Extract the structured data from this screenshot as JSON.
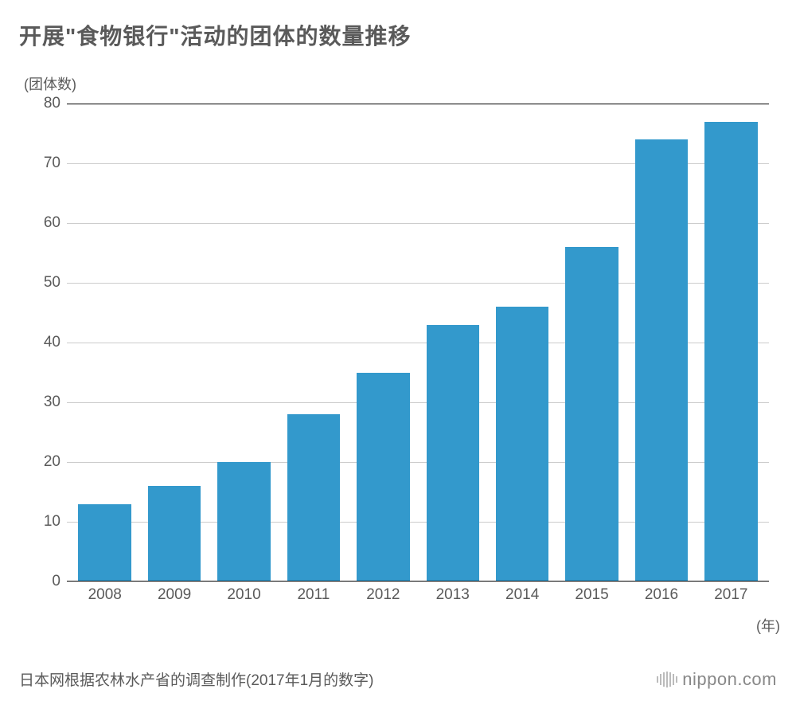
{
  "title": "开展\"食物银行\"活动的团体的数量推移",
  "ylabel": "(团体数)",
  "xlabel": "(年)",
  "source": "日本网根据农林水产省的调查制作(2017年1月的数字)",
  "logo": "nippon.com",
  "chart": {
    "type": "bar",
    "categories": [
      "2008",
      "2009",
      "2010",
      "2011",
      "2012",
      "2013",
      "2014",
      "2015",
      "2016",
      "2017"
    ],
    "values": [
      13,
      16,
      20,
      28,
      35,
      43,
      46,
      56,
      74,
      77
    ],
    "bar_color": "#3399cc",
    "ylim": [
      0,
      80
    ],
    "ytick_step": 10,
    "yticks": [
      0,
      10,
      20,
      30,
      40,
      50,
      60,
      70,
      80
    ],
    "background_color": "#ffffff",
    "grid_color": "#cccccc",
    "top_line_color": "#000000",
    "baseline_color": "#000000",
    "text_color": "#5a5a5a",
    "title_fontsize": 28,
    "label_fontsize": 18,
    "tick_fontsize": 19,
    "bar_width_ratio": 0.76
  }
}
